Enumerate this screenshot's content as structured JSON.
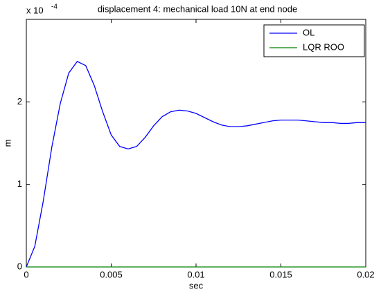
{
  "chart_data": {
    "type": "line",
    "title": "displacement 4: mechanical load 10N at end node",
    "x_label": "sec",
    "y_label": "m",
    "y_exponent": {
      "base": "x 10",
      "power": "-4"
    },
    "x": [
      0,
      0.0005,
      0.001,
      0.0015,
      0.002,
      0.0025,
      0.003,
      0.0035,
      0.004,
      0.0045,
      0.005,
      0.0055,
      0.006,
      0.0065,
      0.007,
      0.0075,
      0.008,
      0.0085,
      0.009,
      0.0095,
      0.01,
      0.0105,
      0.011,
      0.0115,
      0.012,
      0.0125,
      0.013,
      0.0135,
      0.014,
      0.0145,
      0.015,
      0.0155,
      0.016,
      0.0165,
      0.017,
      0.0175,
      0.018,
      0.0185,
      0.019,
      0.0195,
      0.02
    ],
    "series": [
      {
        "name": "OL",
        "color": "#0000ff",
        "values": [
          0,
          0.25,
          0.8,
          1.45,
          1.98,
          2.35,
          2.49,
          2.44,
          2.2,
          1.88,
          1.6,
          1.46,
          1.43,
          1.46,
          1.57,
          1.71,
          1.82,
          1.88,
          1.9,
          1.89,
          1.86,
          1.81,
          1.76,
          1.72,
          1.7,
          1.7,
          1.71,
          1.73,
          1.75,
          1.77,
          1.78,
          1.78,
          1.78,
          1.77,
          1.76,
          1.75,
          1.75,
          1.74,
          1.74,
          1.75,
          1.75
        ]
      },
      {
        "name": "LQR ROO",
        "color": "#008000",
        "values": [
          0,
          0,
          0,
          0,
          0,
          0,
          0,
          0,
          0,
          0,
          0,
          0,
          0,
          0,
          0,
          0,
          0,
          0,
          0,
          0,
          0,
          0,
          0,
          0,
          0,
          0,
          0,
          0,
          0,
          0,
          0,
          0,
          0,
          0,
          0,
          0,
          0,
          0,
          0,
          0,
          0
        ]
      }
    ],
    "xlim": [
      0,
      0.02
    ],
    "xticks": [
      0,
      0.005,
      0.01,
      0.015,
      0.02
    ],
    "ylim": [
      0,
      3
    ],
    "yticks": [
      0,
      1,
      2
    ],
    "legend": "top-right",
    "grid": false
  }
}
